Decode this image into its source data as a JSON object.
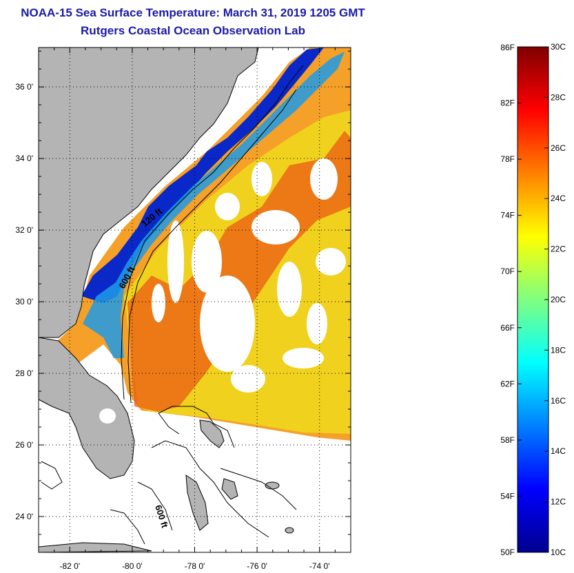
{
  "header": {
    "title": "NOAA-15 Sea Surface Temperature:  March 31, 2019 1205 GMT",
    "subtitle": "Rutgers Coastal Ocean Observation Lab"
  },
  "map": {
    "lat_range": [
      23,
      37.1
    ],
    "lon_range": [
      -83,
      -73
    ],
    "lat_ticks": [
      {
        "value": 24,
        "label": "24 0'"
      },
      {
        "value": 26,
        "label": "26 0'"
      },
      {
        "value": 28,
        "label": "28 0'"
      },
      {
        "value": 30,
        "label": "30 0'"
      },
      {
        "value": 32,
        "label": "32 0'"
      },
      {
        "value": 34,
        "label": "34 0'"
      },
      {
        "value": 36,
        "label": "36 0'"
      }
    ],
    "lon_ticks": [
      {
        "value": -82,
        "label": "-82 0'"
      },
      {
        "value": -80,
        "label": "-80 0'"
      },
      {
        "value": -78,
        "label": "-78 0'"
      },
      {
        "value": -76,
        "label": "-76 0'"
      },
      {
        "value": -74,
        "label": "-74 0'"
      }
    ],
    "contour_labels": [
      "120 ft",
      "600 ft",
      "600 ft"
    ],
    "colors": {
      "land": "#b4b4b4",
      "cloud": "#ffffff",
      "cold": "#0a28c8",
      "cool": "#1e9be6",
      "mild": "#32dcc8",
      "warm": "#f0d21e",
      "warmer": "#f5a028",
      "hot": "#eb5a14"
    }
  },
  "colorbar": {
    "fahrenheit_labels": [
      "86F",
      "82F",
      "78F",
      "74F",
      "70F",
      "66F",
      "62F",
      "58F",
      "54F",
      "50F"
    ],
    "celsius_labels": [
      "30C",
      "28C",
      "26C",
      "24C",
      "22C",
      "20C",
      "18C",
      "16C",
      "14C",
      "12C",
      "10C"
    ],
    "range_c": [
      10,
      30
    ],
    "gradient_stops": [
      "#00008f",
      "#0000ff",
      "#0080ff",
      "#00ffff",
      "#80ff80",
      "#ffff00",
      "#ff8000",
      "#ff0000",
      "#800000"
    ]
  }
}
